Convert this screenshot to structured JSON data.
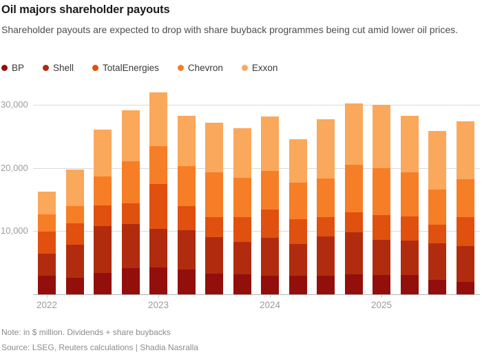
{
  "header": {
    "title": "Oil majors shareholder payouts",
    "subtitle": "Shareholder payouts are expected to drop with share buyback programmes being cut amid lower oil prices."
  },
  "legend": {
    "items": [
      {
        "label": "BP",
        "color": "#930f0b"
      },
      {
        "label": "Shell",
        "color": "#b12c0e"
      },
      {
        "label": "TotalEnergies",
        "color": "#e0500f"
      },
      {
        "label": "Chevron",
        "color": "#f67e27"
      },
      {
        "label": "Exxon",
        "color": "#faa85c"
      }
    ]
  },
  "chart_data": {
    "type": "bar",
    "stacked": true,
    "unit": "$ million",
    "title": "Oil majors shareholder payouts",
    "xlabel": "",
    "ylabel": "",
    "ylim": [
      0,
      32500
    ],
    "yticks": [
      10000,
      20000,
      30000
    ],
    "ytick_labels": [
      "10,000",
      "20,000",
      "30,000"
    ],
    "grid": "horizontal",
    "legend_position": "top",
    "categories": [
      "2022 Q1",
      "2022 Q2",
      "2022 Q3",
      "2022 Q4",
      "2023 Q1",
      "2023 Q2",
      "2023 Q3",
      "2023 Q4",
      "2024 Q1",
      "2024 Q2",
      "2024 Q3",
      "2024 Q4",
      "2025 Q1",
      "2025 Q2",
      "2025 Q3",
      "2025 Q4"
    ],
    "year_labels": [
      {
        "label": "2022",
        "category_index": 0
      },
      {
        "label": "2023",
        "category_index": 4
      },
      {
        "label": "2024",
        "category_index": 8
      },
      {
        "label": "2025",
        "category_index": 12
      }
    ],
    "series": [
      {
        "name": "BP",
        "color": "#930f0b",
        "values": [
          2900,
          2600,
          3380,
          4100,
          4280,
          3900,
          3270,
          3130,
          2900,
          2900,
          2900,
          3130,
          3000,
          3000,
          2300,
          1950
        ]
      },
      {
        "name": "Shell",
        "color": "#b12c0e",
        "values": [
          3550,
          5250,
          7370,
          7000,
          6120,
          6200,
          5830,
          5120,
          6050,
          5050,
          6250,
          6720,
          5650,
          5500,
          5750,
          5650
        ]
      },
      {
        "name": "TotalEnergies",
        "color": "#e0500f",
        "values": [
          3450,
          3350,
          3300,
          3300,
          7000,
          3900,
          3100,
          4000,
          4500,
          3950,
          3100,
          3150,
          3900,
          3850,
          3000,
          4600
        ]
      },
      {
        "name": "Chevron",
        "color": "#f67e27",
        "values": [
          2700,
          2800,
          4650,
          6600,
          6000,
          6300,
          7100,
          6150,
          6100,
          5750,
          6050,
          7550,
          7400,
          6950,
          5550,
          6000
        ]
      },
      {
        "name": "Exxon",
        "color": "#faa85c",
        "values": [
          3700,
          5700,
          7400,
          8150,
          8600,
          8000,
          7900,
          7900,
          8550,
          6850,
          9400,
          9650,
          10050,
          9000,
          9200,
          9200
        ]
      }
    ],
    "totals": [
      16300,
      19700,
      26100,
      29100,
      32000,
      28300,
      27200,
      26300,
      28100,
      24500,
      27700,
      30200,
      30000,
      28300,
      25800,
      27400
    ]
  },
  "footer": {
    "note": "Note: in $ million. Dividends + share buybacks",
    "source": "Source: LSEG, Reuters calculations | Shadia Nasralla"
  }
}
